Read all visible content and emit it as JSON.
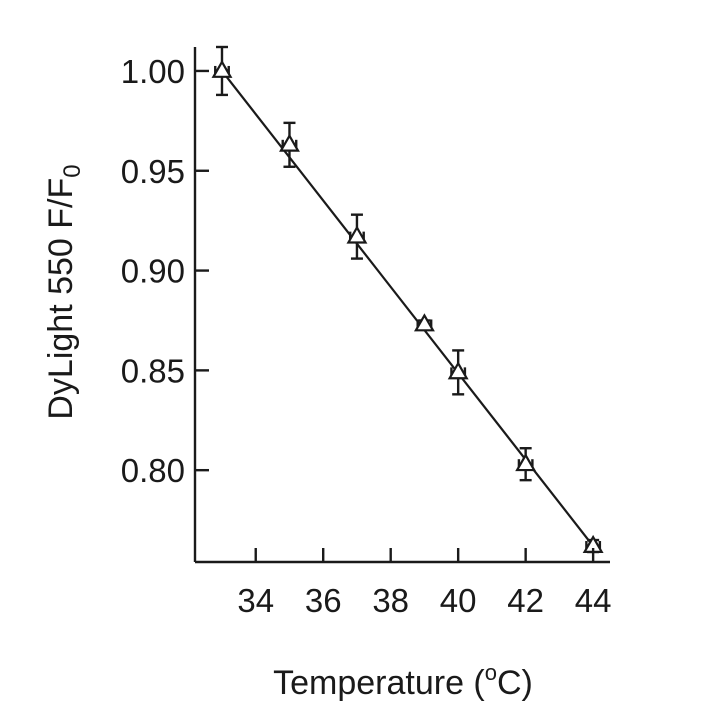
{
  "chart_data": {
    "type": "scatter",
    "xlabel": "Temperature (",
    "xlabel_sup": "o",
    "xlabel_end": "C)",
    "ylabel": "DyLight 550 F/F",
    "ylabel_sub": "0",
    "xlim": [
      32.2,
      44.5
    ],
    "ylim": [
      0.754,
      1.012
    ],
    "x_ticks": [
      34,
      36,
      38,
      40,
      42,
      44
    ],
    "x_tick_labels": [
      "34",
      "36",
      "38",
      "40",
      "42",
      "44"
    ],
    "y_ticks": [
      0.8,
      0.85,
      0.9,
      0.95,
      1.0
    ],
    "y_tick_labels": [
      "0.80",
      "0.85",
      "0.90",
      "0.95",
      "1.00"
    ],
    "marker": "open-triangle",
    "grid": false,
    "series": [
      {
        "x": [
          33,
          35,
          37,
          39,
          40,
          42,
          44
        ],
        "y": [
          1.0,
          0.963,
          0.917,
          0.873,
          0.849,
          0.803,
          0.762
        ],
        "y_err": [
          0.012,
          0.011,
          0.011,
          0.002,
          0.011,
          0.008,
          0.003
        ],
        "x_err": [
          0.2,
          0.2,
          0.2,
          0.2,
          0.2,
          0.2,
          0.2
        ]
      }
    ],
    "fit_line": {
      "x": [
        33,
        44
      ],
      "y": [
        1.0,
        0.762
      ]
    }
  }
}
